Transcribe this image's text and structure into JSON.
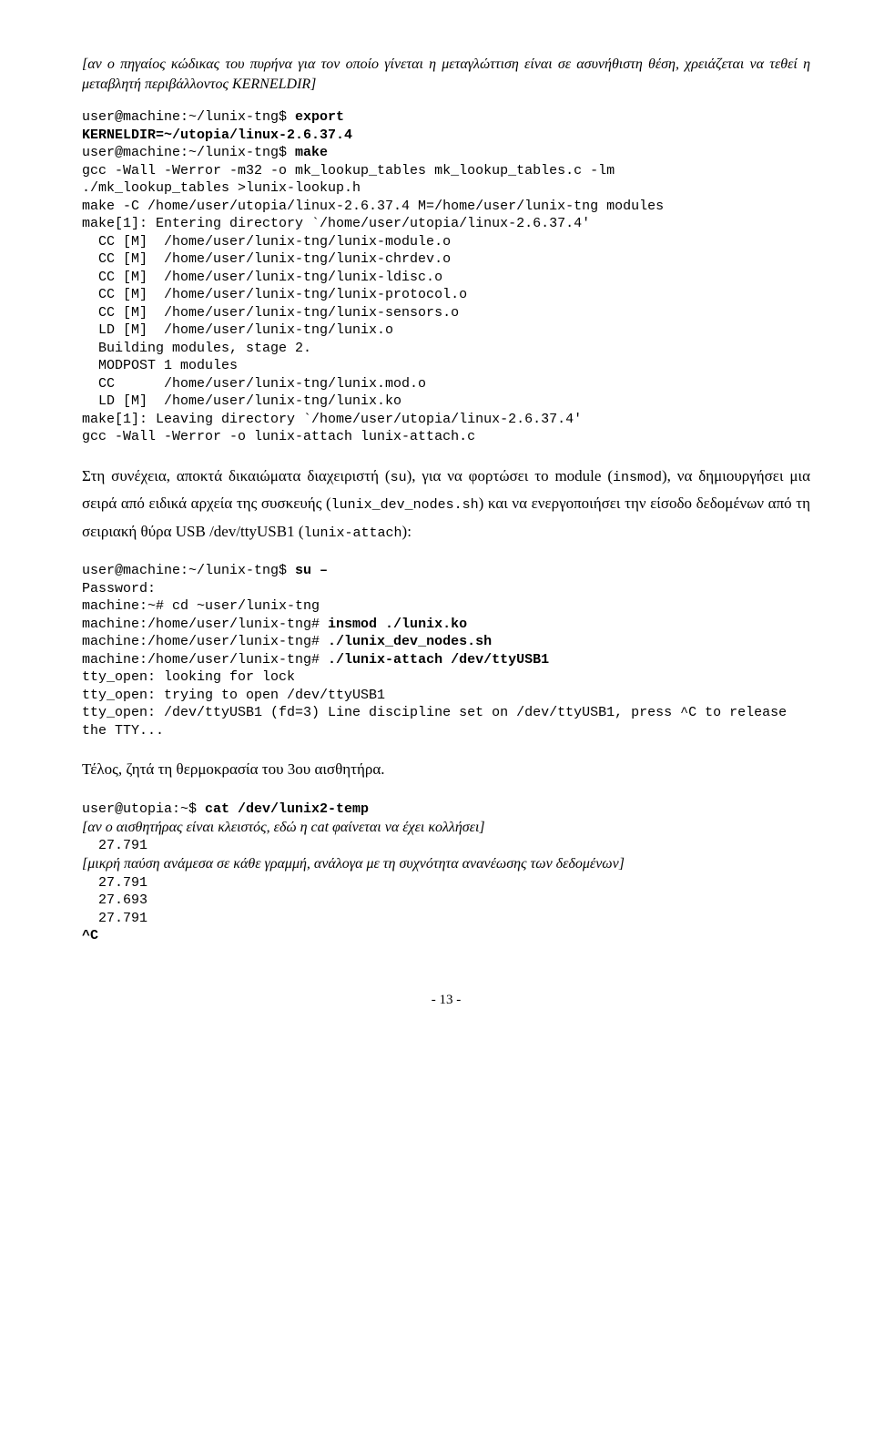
{
  "intro_note": "[αν ο πηγαίος κώδικας του πυρήνα για τον οποίο γίνεται η μεταγλώττιση είναι σε ασυνήθιστη θέση, χρειάζεται να τεθεί η μεταβλητή περιβάλλοντος KERNELDIR]",
  "block1": {
    "l1a": "user@machine:~/lunix-tng$ ",
    "l1b": "export",
    "l2": "KERNELDIR=~/utopia/linux-2.6.37.4",
    "l3a": "user@machine:~/lunix-tng$ ",
    "l3b": "make",
    "l4": "gcc -Wall -Werror -m32 -o mk_lookup_tables mk_lookup_tables.c -lm",
    "l5": "./mk_lookup_tables >lunix-lookup.h",
    "l6": "make -C /home/user/utopia/linux-2.6.37.4 M=/home/user/lunix-tng modules",
    "l7": "make[1]: Entering directory `/home/user/utopia/linux-2.6.37.4'",
    "l8": "  CC [M]  /home/user/lunix-tng/lunix-module.o",
    "l9": "  CC [M]  /home/user/lunix-tng/lunix-chrdev.o",
    "l10": "  CC [M]  /home/user/lunix-tng/lunix-ldisc.o",
    "l11": "  CC [M]  /home/user/lunix-tng/lunix-protocol.o",
    "l12": "  CC [M]  /home/user/lunix-tng/lunix-sensors.o",
    "l13": "  LD [M]  /home/user/lunix-tng/lunix.o",
    "l14": "  Building modules, stage 2.",
    "l15": "  MODPOST 1 modules",
    "l16": "  CC      /home/user/lunix-tng/lunix.mod.o",
    "l17": "  LD [M]  /home/user/lunix-tng/lunix.ko",
    "l18": "make[1]: Leaving directory `/home/user/utopia/linux-2.6.37.4'",
    "l19": "gcc -Wall -Werror -o lunix-attach lunix-attach.c"
  },
  "prose1_a": "Στη συνέχεια, αποκτά δικαιώματα διαχειριστή (",
  "prose1_b": "su",
  "prose1_c": "), για να φορτώσει το module (",
  "prose1_d": "insmod",
  "prose1_e": "), να δημιουργήσει μια σειρά από ειδικά αρχεία της συσκευής (",
  "prose1_f": "lunix_dev_nodes.sh",
  "prose1_g": ") και να ενεργοποιήσει την είσοδο δεδομένων από τη σειριακή θύρα USB /dev/ttyUSB1 (",
  "prose1_h": "lunix-attach",
  "prose1_i": "):",
  "block2": {
    "l1a": "user@machine:~/lunix-tng$ ",
    "l1b": "su –",
    "l2": "Password:",
    "l3": "machine:~# cd ~user/lunix-tng",
    "l4a": "machine:/home/user/lunix-tng# ",
    "l4b": "insmod ./lunix.ko",
    "l5a": "machine:/home/user/lunix-tng# ",
    "l5b": "./lunix_dev_nodes.sh",
    "l6a": "machine:/home/user/lunix-tng# ",
    "l6b": "./lunix-attach /dev/ttyUSB1",
    "l7": "tty_open: looking for lock",
    "l8": "tty_open: trying to open /dev/ttyUSB1",
    "l9": "tty_open: /dev/ttyUSB1 (fd=3) Line discipline set on /dev/ttyUSB1, press ^C to release the TTY..."
  },
  "prose2": "Τέλος, ζητά τη θερμοκρασία του 3ου αισθητήρα.",
  "block3": {
    "l1a": "user@utopia:~$ ",
    "l1b": "cat /dev/lunix2-temp",
    "note1": "[αν ο αισθητήρας είναι κλειστός, εδώ η cat φαίνεται να έχει κολλήσει]",
    "l2": "  27.791",
    "note2": "[μικρή παύση ανάμεσα σε κάθε γραμμή, ανάλογα με τη συχνότητα ανανέωσης των δεδομένων]",
    "l3": "  27.791",
    "l4": "  27.693",
    "l5": "  27.791",
    "l6": "^C"
  },
  "pagenum": "- 13 -"
}
